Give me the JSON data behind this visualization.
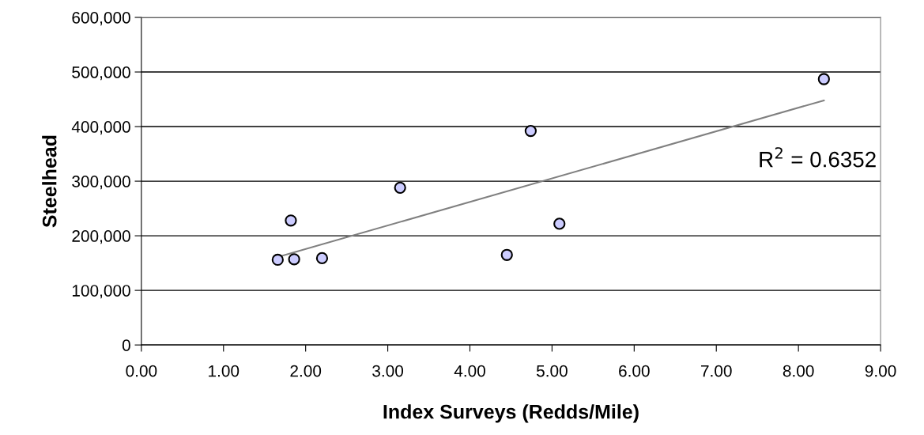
{
  "chart_data": {
    "type": "scatter",
    "xlabel": "Index Surveys (Redds/Mile)",
    "ylabel": "Steelhead",
    "xlim": [
      0,
      9
    ],
    "xticks": [
      {
        "value": 0,
        "label": "0.00"
      },
      {
        "value": 1,
        "label": "1.00"
      },
      {
        "value": 2,
        "label": "2.00"
      },
      {
        "value": 3,
        "label": "3.00"
      },
      {
        "value": 4,
        "label": "4.00"
      },
      {
        "value": 5,
        "label": "5.00"
      },
      {
        "value": 6,
        "label": "6.00"
      },
      {
        "value": 7,
        "label": "7.00"
      },
      {
        "value": 8,
        "label": "8.00"
      },
      {
        "value": 9,
        "label": "9.00"
      }
    ],
    "ylim": [
      0,
      600000
    ],
    "yticks": [
      0,
      {
        "value": 100000,
        "label": "100,000"
      },
      {
        "value": 200000,
        "label": "200,000"
      },
      {
        "value": 300000,
        "label": "300,000"
      },
      {
        "value": 400000,
        "label": "400,000"
      },
      {
        "value": 500000,
        "label": "500,000"
      },
      {
        "value": 600000,
        "label": "600,000"
      }
    ],
    "grid": "y",
    "series": [
      {
        "marker": "circle",
        "color": "#ccccff",
        "x": [
          1.66,
          1.82,
          1.86,
          2.2,
          3.15,
          4.45,
          4.74,
          5.09,
          8.31
        ],
        "values": [
          156000,
          228000,
          157000,
          159000,
          288000,
          165000,
          392000,
          222000,
          487000
        ]
      },
      {
        "type": "line",
        "marker": "none",
        "color": "#808080",
        "x": [
          1.66,
          8.31
        ],
        "values": [
          161000,
          448000
        ]
      }
    ],
    "annotations": [
      "R$^{2}$ = 0.6352"
    ]
  }
}
